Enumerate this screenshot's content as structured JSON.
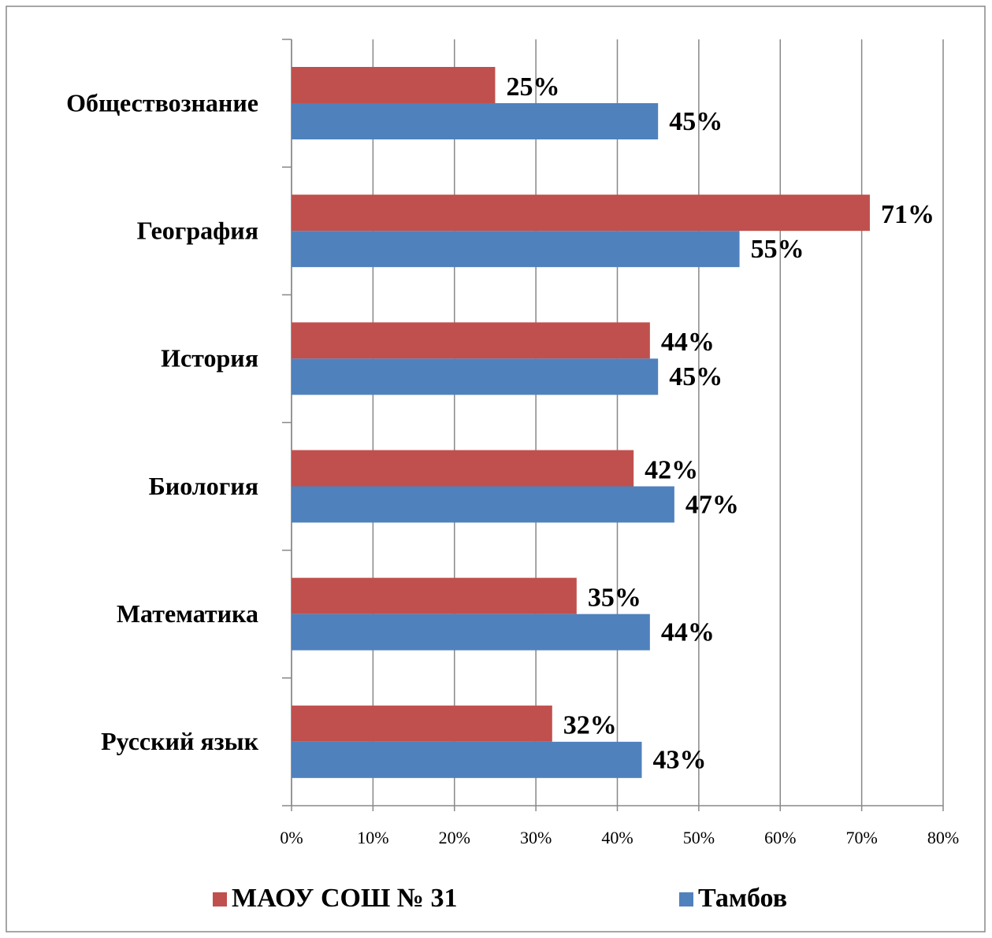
{
  "chart_data": {
    "type": "hbar",
    "categories": [
      "Обществознание",
      "География",
      "История",
      "Биология",
      "Математика",
      "Русский язык"
    ],
    "series": [
      {
        "name": "МАОУ СОШ № 31",
        "color": "#c0504d",
        "values": [
          25,
          71,
          44,
          42,
          35,
          32
        ],
        "value_labels": [
          "25%",
          "71%",
          "44%",
          "42%",
          "35%",
          "32%"
        ]
      },
      {
        "name": "Тамбов",
        "color": "#4f81bd",
        "values": [
          45,
          55,
          45,
          47,
          44,
          43
        ],
        "value_labels": [
          "45%",
          "55%",
          "45%",
          "47%",
          "44%",
          "43%"
        ]
      }
    ],
    "xlim": [
      0,
      80
    ],
    "xticks": [
      {
        "value": 0,
        "label": "0%"
      },
      {
        "value": 10,
        "label": "10%"
      },
      {
        "value": 20,
        "label": "20%"
      },
      {
        "value": 30,
        "label": "30%"
      },
      {
        "value": 40,
        "label": "40%"
      },
      {
        "value": 50,
        "label": "50%"
      },
      {
        "value": 60,
        "label": "60%"
      },
      {
        "value": 70,
        "label": "70%"
      },
      {
        "value": 80,
        "label": "80%"
      }
    ],
    "grid": true,
    "legend": "bottom"
  }
}
